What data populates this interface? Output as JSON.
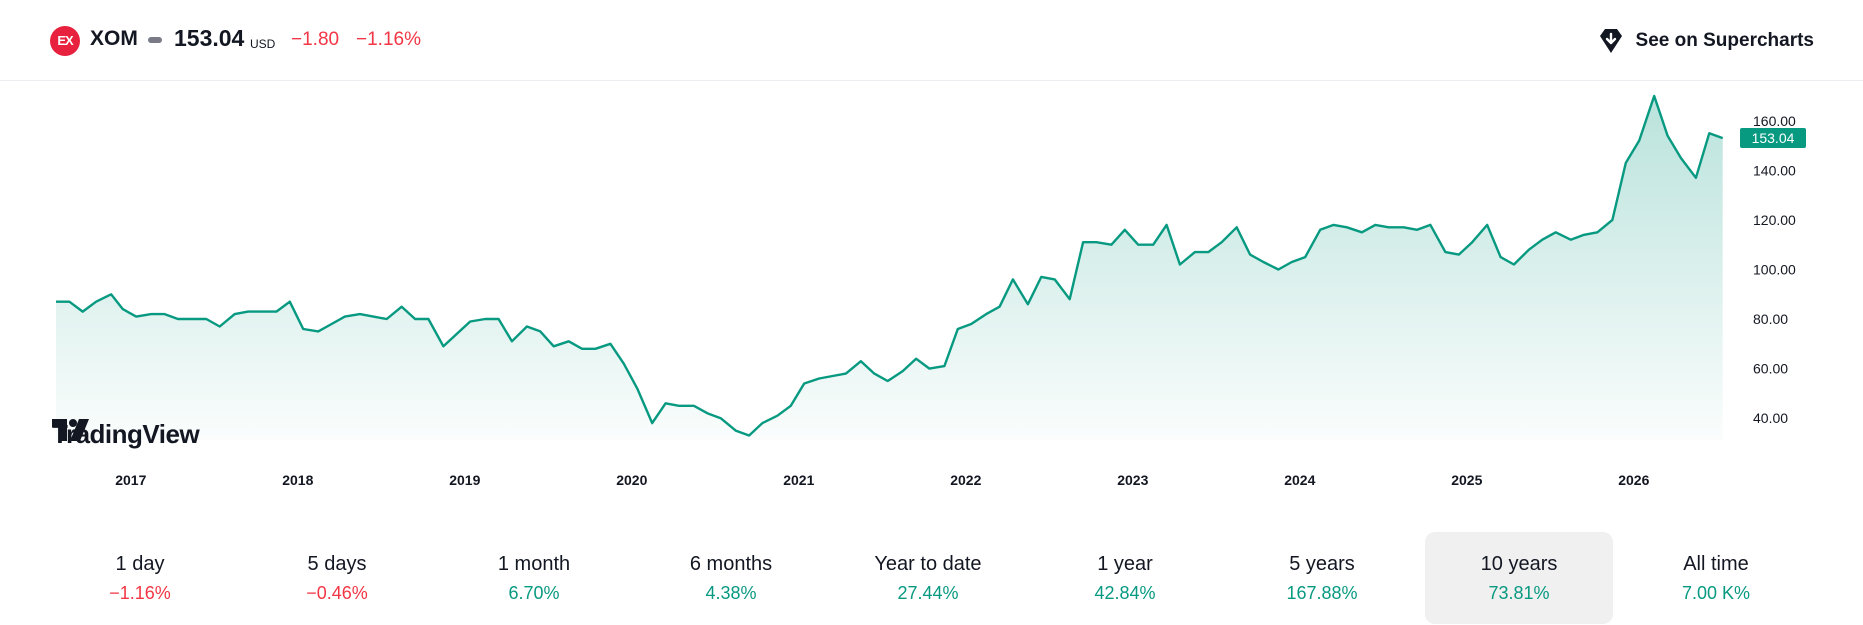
{
  "header": {
    "exchange_logo_text": "EX",
    "symbol": "XOM",
    "price": "153.04",
    "currency": "USD",
    "change": "−1.80",
    "change_pct": "−1.16%",
    "supercharts_label": "See on Supercharts",
    "supercharts_icon": "tradingview-pin-icon"
  },
  "brand": {
    "name": "TradingView"
  },
  "colors": {
    "line": "#089981",
    "negative": "#f23645",
    "positive": "#089981",
    "last_price_bg": "#089981"
  },
  "chart_data": {
    "type": "area",
    "ylim": [
      32,
      170
    ],
    "yticks": [
      "40.00",
      "60.00",
      "80.00",
      "100.00",
      "120.00",
      "140.00",
      "160.00"
    ],
    "ytick_values": [
      40,
      60,
      80,
      100,
      120,
      140,
      160
    ],
    "xlim": [
      2016.6,
      2026.6
    ],
    "xticks": [
      "2017",
      "2018",
      "2019",
      "2020",
      "2021",
      "2022",
      "2023",
      "2024",
      "2025",
      "2026"
    ],
    "xtick_values": [
      2017,
      2018,
      2019,
      2020,
      2021,
      2022,
      2023,
      2024,
      2025,
      2026
    ],
    "last_price_label": "153.04",
    "last_price": 153.04,
    "grid": false,
    "x": [
      2016.6,
      2016.68,
      2016.76,
      2016.84,
      2016.93,
      2017.0,
      2017.08,
      2017.17,
      2017.25,
      2017.33,
      2017.42,
      2017.5,
      2017.58,
      2017.67,
      2017.75,
      2017.83,
      2017.92,
      2018.0,
      2018.08,
      2018.17,
      2018.25,
      2018.33,
      2018.42,
      2018.5,
      2018.58,
      2018.67,
      2018.75,
      2018.83,
      2018.92,
      2019.0,
      2019.08,
      2019.17,
      2019.25,
      2019.33,
      2019.42,
      2019.5,
      2019.58,
      2019.67,
      2019.75,
      2019.83,
      2019.92,
      2020.0,
      2020.08,
      2020.17,
      2020.25,
      2020.33,
      2020.42,
      2020.5,
      2020.58,
      2020.67,
      2020.75,
      2020.83,
      2020.92,
      2021.0,
      2021.08,
      2021.17,
      2021.25,
      2021.33,
      2021.42,
      2021.5,
      2021.58,
      2021.67,
      2021.75,
      2021.83,
      2021.92,
      2022.0,
      2022.08,
      2022.17,
      2022.25,
      2022.33,
      2022.42,
      2022.5,
      2022.58,
      2022.67,
      2022.75,
      2022.83,
      2022.92,
      2023.0,
      2023.08,
      2023.17,
      2023.25,
      2023.33,
      2023.42,
      2023.5,
      2023.58,
      2023.67,
      2023.75,
      2023.83,
      2023.92,
      2024.0,
      2024.08,
      2024.17,
      2024.25,
      2024.33,
      2024.42,
      2024.5,
      2024.58,
      2024.67,
      2024.75,
      2024.83,
      2024.92,
      2025.0,
      2025.08,
      2025.17,
      2025.25,
      2025.33,
      2025.42,
      2025.5,
      2025.58,
      2025.67,
      2025.75,
      2025.83,
      2025.92,
      2026.0,
      2026.08,
      2026.17,
      2026.25,
      2026.33,
      2026.42,
      2026.5,
      2026.58
    ],
    "values": [
      87,
      87,
      83,
      87,
      90,
      84,
      81,
      82,
      82,
      80,
      80,
      80,
      77,
      82,
      83,
      83,
      83,
      87,
      76,
      75,
      78,
      81,
      82,
      81,
      80,
      85,
      80,
      80,
      69,
      74,
      79,
      80,
      80,
      71,
      77,
      75,
      69,
      71,
      68,
      68,
      70,
      62,
      52,
      38,
      46,
      45,
      45,
      42,
      40,
      35,
      33,
      38,
      41,
      45,
      54,
      56,
      57,
      58,
      63,
      58,
      55,
      59,
      64,
      60,
      61,
      76,
      78,
      82,
      85,
      96,
      86,
      97,
      96,
      88,
      111,
      111,
      110,
      116,
      110,
      110,
      118,
      102,
      107,
      107,
      111,
      117,
      106,
      103,
      100,
      103,
      105,
      116,
      118,
      117,
      115,
      118,
      117,
      117,
      116,
      118,
      107,
      106,
      111,
      118,
      105,
      102,
      108,
      112,
      115,
      112,
      114,
      115,
      120,
      143,
      152,
      170,
      154,
      145,
      137,
      155,
      153
    ]
  },
  "periods": [
    {
      "label": "1 day",
      "value": "−1.16%",
      "trend": "neg"
    },
    {
      "label": "5 days",
      "value": "−0.46%",
      "trend": "neg"
    },
    {
      "label": "1 month",
      "value": "6.70%",
      "trend": "pos"
    },
    {
      "label": "6 months",
      "value": "4.38%",
      "trend": "pos"
    },
    {
      "label": "Year to date",
      "value": "27.44%",
      "trend": "pos"
    },
    {
      "label": "1 year",
      "value": "42.84%",
      "trend": "pos"
    },
    {
      "label": "5 years",
      "value": "167.88%",
      "trend": "pos"
    },
    {
      "label": "10 years",
      "value": "73.81%",
      "trend": "pos",
      "selected": true
    },
    {
      "label": "All time",
      "value": "7.00 K%",
      "trend": "pos"
    }
  ]
}
